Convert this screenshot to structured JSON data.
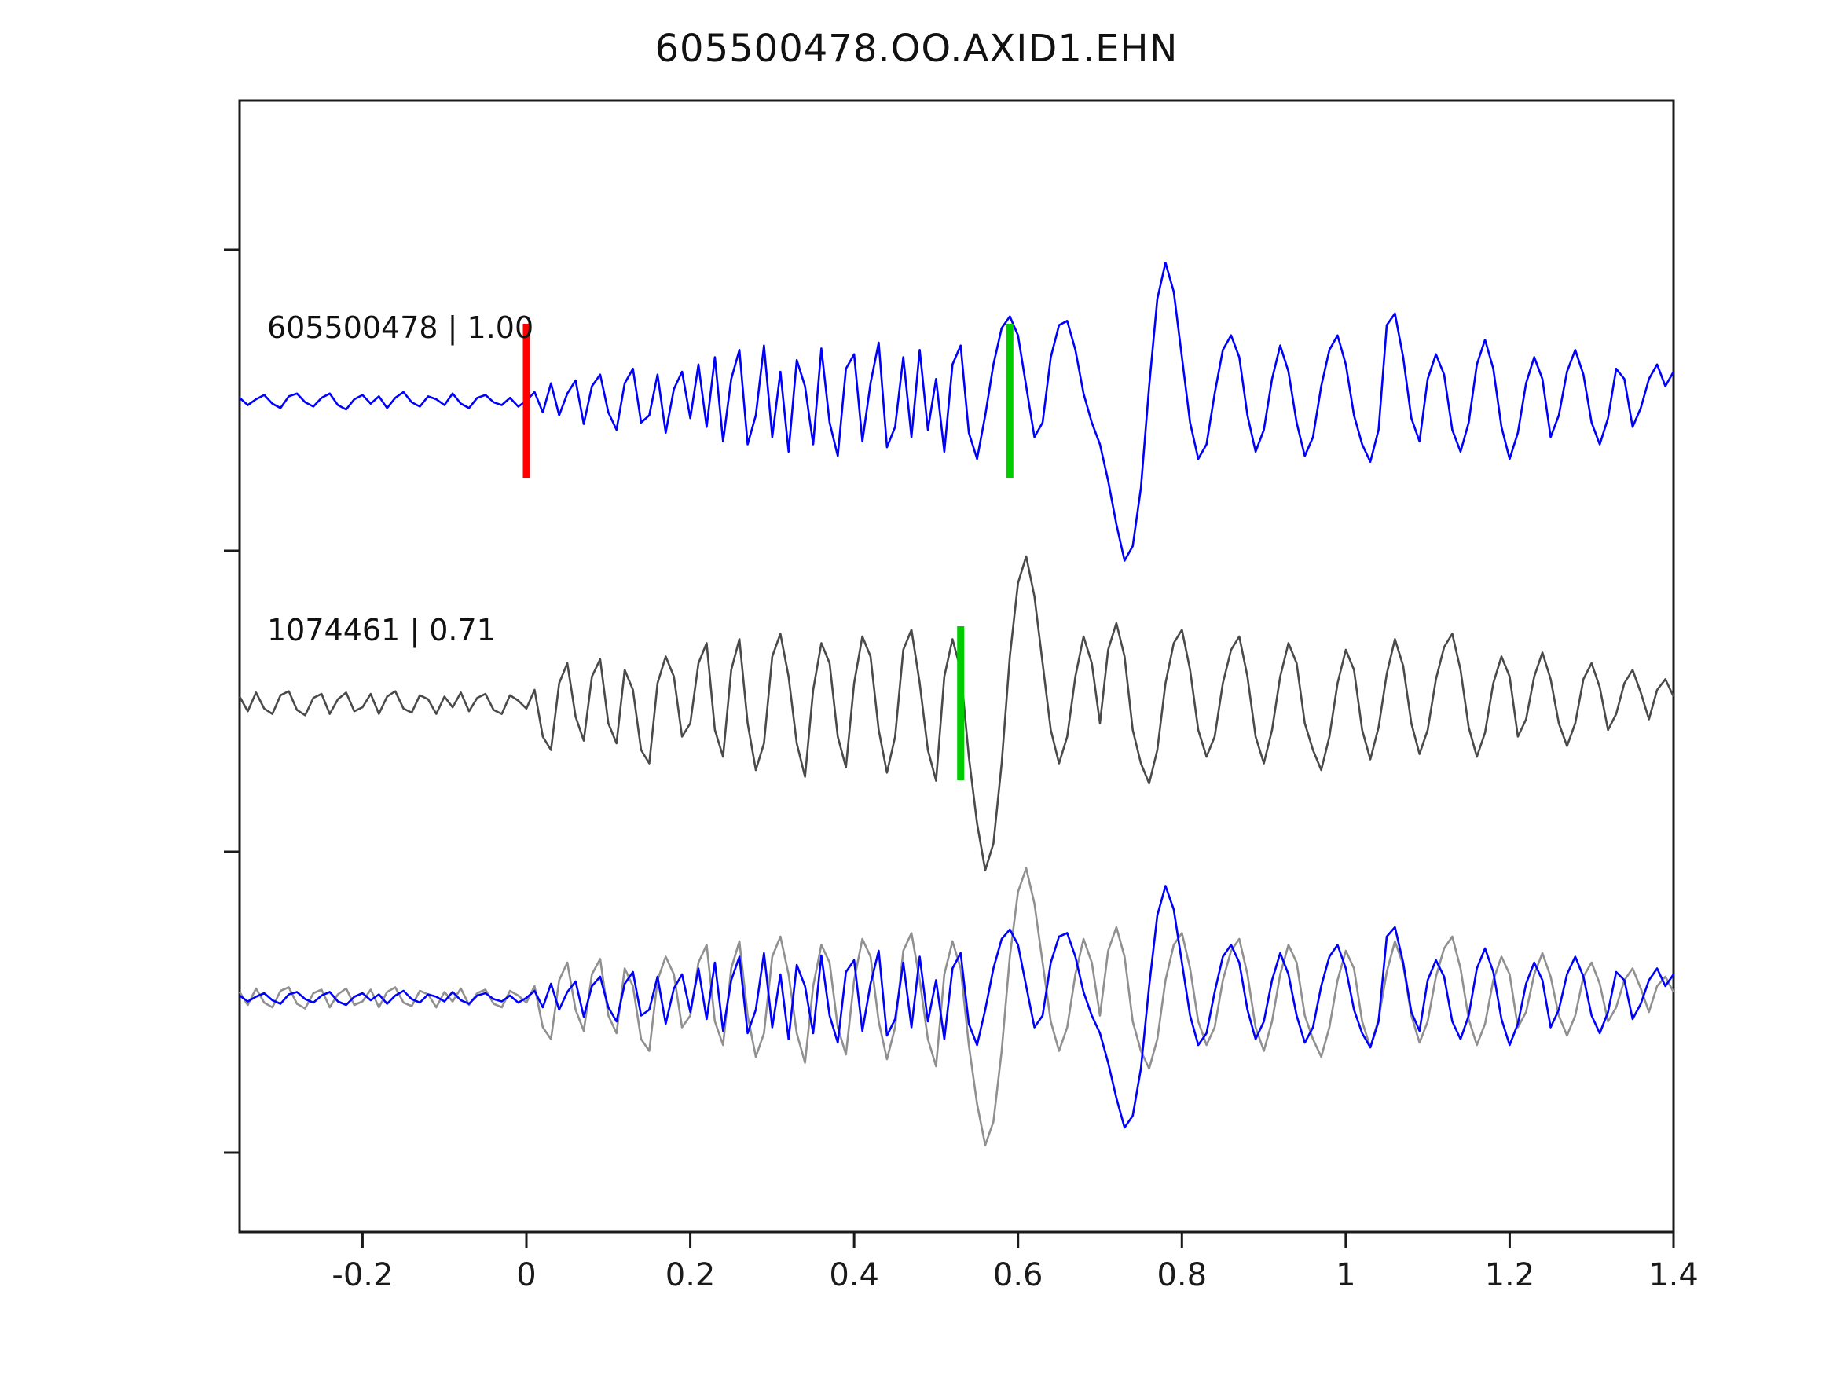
{
  "title": "605500478.OO.AXID1.EHN",
  "chart_data": {
    "type": "line",
    "title": "605500478.OO.AXID1.EHN",
    "xlabel": "",
    "ylabel": "",
    "x_range": [
      -0.35,
      1.4
    ],
    "xtick_values": [
      -0.2,
      0,
      0.2,
      0.4,
      0.6,
      0.8,
      1,
      1.2,
      1.4
    ],
    "xtick_labels": [
      "-0.2",
      "0",
      "0.2",
      "0.4",
      "0.6",
      "0.8",
      "1",
      "1.2",
      "1.4"
    ],
    "grid": false,
    "legend": false,
    "description": "Template-matching seismogram comparison: template trace (blue), matched detection trace (dark gray), and overlay of both (blue + light gray). Vertical red line marks t=0 on the template; green lines mark phase picks.",
    "series": [
      {
        "name": "605500478",
        "label": "605500478 | 1.00",
        "score": 1.0,
        "color": "#0000ff",
        "values": [
          0.02,
          -0.03,
          0.01,
          0.04,
          -0.02,
          -0.05,
          0.03,
          0.05,
          -0.01,
          -0.04,
          0.02,
          0.05,
          -0.03,
          -0.06,
          0.01,
          0.04,
          -0.02,
          0.03,
          -0.05,
          0.02,
          0.06,
          -0.01,
          -0.04,
          0.03,
          0.01,
          -0.03,
          0.05,
          -0.02,
          -0.05,
          0.02,
          0.04,
          -0.01,
          -0.03,
          0.02,
          -0.04,
          0.0,
          0.06,
          -0.08,
          0.12,
          -0.1,
          0.05,
          0.14,
          -0.16,
          0.1,
          0.18,
          -0.08,
          -0.2,
          0.12,
          0.22,
          -0.15,
          -0.1,
          0.18,
          -0.22,
          0.08,
          0.2,
          -0.12,
          0.25,
          -0.18,
          0.3,
          -0.28,
          0.15,
          0.35,
          -0.3,
          -0.1,
          0.38,
          -0.25,
          0.2,
          -0.35,
          0.28,
          0.1,
          -0.3,
          0.36,
          -0.15,
          -0.38,
          0.22,
          0.32,
          -0.28,
          0.12,
          0.4,
          -0.32,
          -0.18,
          0.3,
          -0.25,
          0.35,
          -0.2,
          0.15,
          -0.35,
          0.25,
          0.38,
          -0.22,
          -0.4,
          -0.1,
          0.25,
          0.5,
          0.58,
          0.45,
          0.1,
          -0.25,
          -0.15,
          0.3,
          0.52,
          0.55,
          0.35,
          0.05,
          -0.15,
          -0.3,
          -0.55,
          -0.85,
          -1.1,
          -1.0,
          -0.6,
          0.1,
          0.7,
          0.95,
          0.75,
          0.3,
          -0.15,
          -0.4,
          -0.3,
          0.05,
          0.35,
          0.45,
          0.3,
          -0.1,
          -0.35,
          -0.2,
          0.15,
          0.38,
          0.2,
          -0.15,
          -0.38,
          -0.25,
          0.1,
          0.35,
          0.45,
          0.25,
          -0.1,
          -0.3,
          -0.42,
          -0.2,
          0.52,
          0.6,
          0.3,
          -0.12,
          -0.28,
          0.15,
          0.32,
          0.18,
          -0.2,
          -0.35,
          -0.15,
          0.25,
          0.42,
          0.22,
          -0.18,
          -0.4,
          -0.22,
          0.12,
          0.3,
          0.15,
          -0.25,
          -0.1,
          0.2,
          0.35,
          0.18,
          -0.15,
          -0.3,
          -0.12,
          0.22,
          0.15,
          -0.18,
          -0.05,
          0.15,
          0.25,
          0.1,
          0.2
        ]
      },
      {
        "name": "1074461",
        "label": "1074461 | 0.71",
        "score": 0.71,
        "color": "#4a4a4a",
        "values": [
          0.05,
          -0.06,
          0.08,
          -0.04,
          -0.08,
          0.06,
          0.09,
          -0.05,
          -0.09,
          0.04,
          0.07,
          -0.08,
          0.03,
          0.08,
          -0.06,
          -0.03,
          0.07,
          -0.08,
          0.05,
          0.09,
          -0.04,
          -0.07,
          0.06,
          0.03,
          -0.08,
          0.05,
          -0.03,
          0.08,
          -0.06,
          0.04,
          0.07,
          -0.05,
          -0.08,
          0.06,
          0.02,
          -0.04,
          0.1,
          -0.25,
          -0.35,
          0.15,
          0.3,
          -0.1,
          -0.28,
          0.2,
          0.33,
          -0.15,
          -0.3,
          0.25,
          0.1,
          -0.35,
          -0.45,
          0.15,
          0.35,
          0.2,
          -0.25,
          -0.15,
          0.3,
          0.45,
          -0.2,
          -0.4,
          0.25,
          0.48,
          -0.15,
          -0.5,
          -0.3,
          0.35,
          0.52,
          0.2,
          -0.3,
          -0.55,
          0.1,
          0.45,
          0.3,
          -0.25,
          -0.48,
          0.15,
          0.5,
          0.35,
          -0.2,
          -0.52,
          -0.25,
          0.4,
          0.55,
          0.15,
          -0.35,
          -0.58,
          0.2,
          0.48,
          0.25,
          -0.4,
          -0.9,
          -1.25,
          -1.05,
          -0.45,
          0.35,
          0.9,
          1.1,
          0.8,
          0.3,
          -0.2,
          -0.45,
          -0.25,
          0.2,
          0.5,
          0.3,
          -0.15,
          0.4,
          0.6,
          0.35,
          -0.2,
          -0.45,
          -0.6,
          -0.35,
          0.15,
          0.45,
          0.55,
          0.25,
          -0.2,
          -0.4,
          -0.25,
          0.15,
          0.4,
          0.5,
          0.2,
          -0.25,
          -0.45,
          -0.2,
          0.2,
          0.45,
          0.3,
          -0.15,
          -0.35,
          -0.5,
          -0.25,
          0.15,
          0.4,
          0.25,
          -0.2,
          -0.42,
          -0.18,
          0.22,
          0.48,
          0.28,
          -0.15,
          -0.38,
          -0.2,
          0.18,
          0.42,
          0.52,
          0.25,
          -0.18,
          -0.4,
          -0.22,
          0.15,
          0.35,
          0.2,
          -0.25,
          -0.12,
          0.2,
          0.38,
          0.18,
          -0.15,
          -0.32,
          -0.15,
          0.18,
          0.3,
          0.12,
          -0.2,
          -0.08,
          0.15,
          0.25,
          0.08,
          -0.12,
          0.1,
          0.18,
          0.05
        ]
      }
    ],
    "overlay": {
      "primary": "605500478",
      "primary_color": "#0000ff",
      "secondary": "1074461",
      "secondary_color": "#909090"
    },
    "markers": [
      {
        "row": 0,
        "x": 0.0,
        "color": "#ff0000",
        "name": "template-zero-marker"
      },
      {
        "row": 0,
        "x": 0.59,
        "color": "#00cc00",
        "name": "template-pick-marker"
      },
      {
        "row": 1,
        "x": 0.53,
        "color": "#00cc00",
        "name": "match-pick-marker"
      }
    ]
  }
}
